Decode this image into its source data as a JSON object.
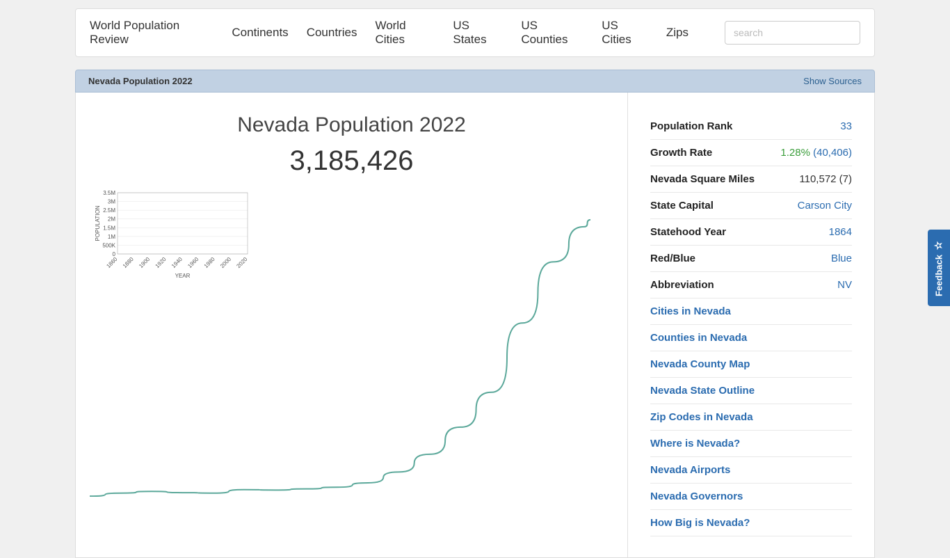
{
  "nav": {
    "items": [
      "World Population Review",
      "Continents",
      "Countries",
      "World Cities",
      "US States",
      "US Counties",
      "US Cities",
      "Zips"
    ],
    "search_placeholder": "search"
  },
  "header": {
    "title": "Nevada Population 2022",
    "show_sources": "Show Sources"
  },
  "main": {
    "title": "Nevada Population 2022",
    "population": "3,185,426"
  },
  "mini_chart": {
    "ylabel": "POPULATION",
    "xlabel": "YEAR",
    "yticks": [
      "0",
      "500K",
      "1M",
      "1.5M",
      "2M",
      "2.5M",
      "3M",
      "3.5M"
    ],
    "xticks": [
      "1860",
      "1880",
      "1900",
      "1920",
      "1940",
      "1960",
      "1980",
      "2000",
      "2020"
    ],
    "ymax": 3500000,
    "xmin": 1860,
    "xmax": 2022,
    "grid_color": "#e5e5e5",
    "axis_color": "#999",
    "text_color": "#555",
    "font_size": 8
  },
  "big_chart": {
    "line_color": "#5ba89a",
    "line_width": 2,
    "xmin": 1860,
    "xmax": 2022,
    "ymin": 0,
    "ymax": 3200000,
    "points": [
      [
        1860,
        6857
      ],
      [
        1870,
        42491
      ],
      [
        1880,
        62266
      ],
      [
        1890,
        47355
      ],
      [
        1900,
        42335
      ],
      [
        1910,
        81875
      ],
      [
        1920,
        77407
      ],
      [
        1930,
        91058
      ],
      [
        1940,
        110247
      ],
      [
        1950,
        160083
      ],
      [
        1960,
        285278
      ],
      [
        1970,
        488738
      ],
      [
        1980,
        800508
      ],
      [
        1990,
        1201833
      ],
      [
        2000,
        1998257
      ],
      [
        2010,
        2700551
      ],
      [
        2020,
        3104614
      ],
      [
        2022,
        3185426
      ]
    ]
  },
  "facts": [
    {
      "label": "Population Rank",
      "value": "33",
      "type": "link"
    },
    {
      "label": "Growth Rate",
      "value": "1.28%",
      "sub": "(40,406)",
      "type": "green"
    },
    {
      "label": "Nevada Square Miles",
      "value": "110,572 (7)",
      "type": "plain"
    },
    {
      "label": "State Capital",
      "value": "Carson City",
      "type": "link"
    },
    {
      "label": "Statehood Year",
      "value": "1864",
      "type": "link"
    },
    {
      "label": "Red/Blue",
      "value": "Blue",
      "type": "link"
    },
    {
      "label": "Abbreviation",
      "value": "NV",
      "type": "link"
    }
  ],
  "links": [
    "Cities in Nevada",
    "Counties in Nevada",
    "Nevada County Map",
    "Nevada State Outline",
    "Zip Codes in Nevada",
    "Where is Nevada?",
    "Nevada Airports",
    "Nevada Governors",
    "How Big is Nevada?"
  ],
  "feedback": {
    "label": "Feedback"
  }
}
